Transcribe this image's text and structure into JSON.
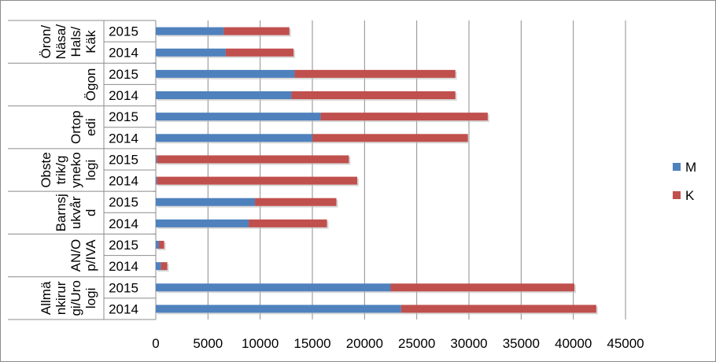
{
  "chart_data": {
    "type": "bar",
    "orientation": "horizontal",
    "stacked": true,
    "groups": [
      {
        "label_lines": [
          "Öron/",
          "Näsa/",
          "Hals/",
          "Käk"
        ],
        "years": [
          "2015",
          "2014"
        ]
      },
      {
        "label_lines": [
          "Ögon"
        ],
        "years": [
          "2015",
          "2014"
        ]
      },
      {
        "label_lines": [
          "Ortop",
          "edi"
        ],
        "years": [
          "2015",
          "2014"
        ]
      },
      {
        "label_lines": [
          "Obste",
          "trik/g",
          "yneko",
          "logi"
        ],
        "years": [
          "2015",
          "2014"
        ]
      },
      {
        "label_lines": [
          "Barnsj",
          "ukvår",
          "d"
        ],
        "years": [
          "2015",
          "2014"
        ]
      },
      {
        "label_lines": [
          "AN/O",
          "p/IVA"
        ],
        "years": [
          "2015",
          "2014"
        ]
      },
      {
        "label_lines": [
          "Allmä",
          "nkirur",
          "gi/Uro",
          "logi"
        ],
        "years": [
          "2015",
          "2014"
        ]
      }
    ],
    "series": [
      {
        "name": "M",
        "color": "#4f81bd",
        "values": [
          [
            6500,
            6700
          ],
          [
            13300,
            13000
          ],
          [
            15800,
            15000
          ],
          [
            100,
            100
          ],
          [
            9500,
            8900
          ],
          [
            300,
            500
          ],
          [
            22500,
            23500
          ]
        ]
      },
      {
        "name": "K",
        "color": "#c0504d",
        "values": [
          [
            6300,
            6500
          ],
          [
            15400,
            15700
          ],
          [
            16000,
            14900
          ],
          [
            18400,
            19200
          ],
          [
            7800,
            7500
          ],
          [
            500,
            600
          ],
          [
            17600,
            18700
          ]
        ]
      }
    ],
    "xlim": [
      0,
      45000
    ],
    "xticks": [
      "0",
      "5000",
      "10000",
      "15000",
      "20000",
      "25000",
      "30000",
      "35000",
      "40000",
      "45000"
    ],
    "grid": "vertical",
    "legend": "right"
  }
}
